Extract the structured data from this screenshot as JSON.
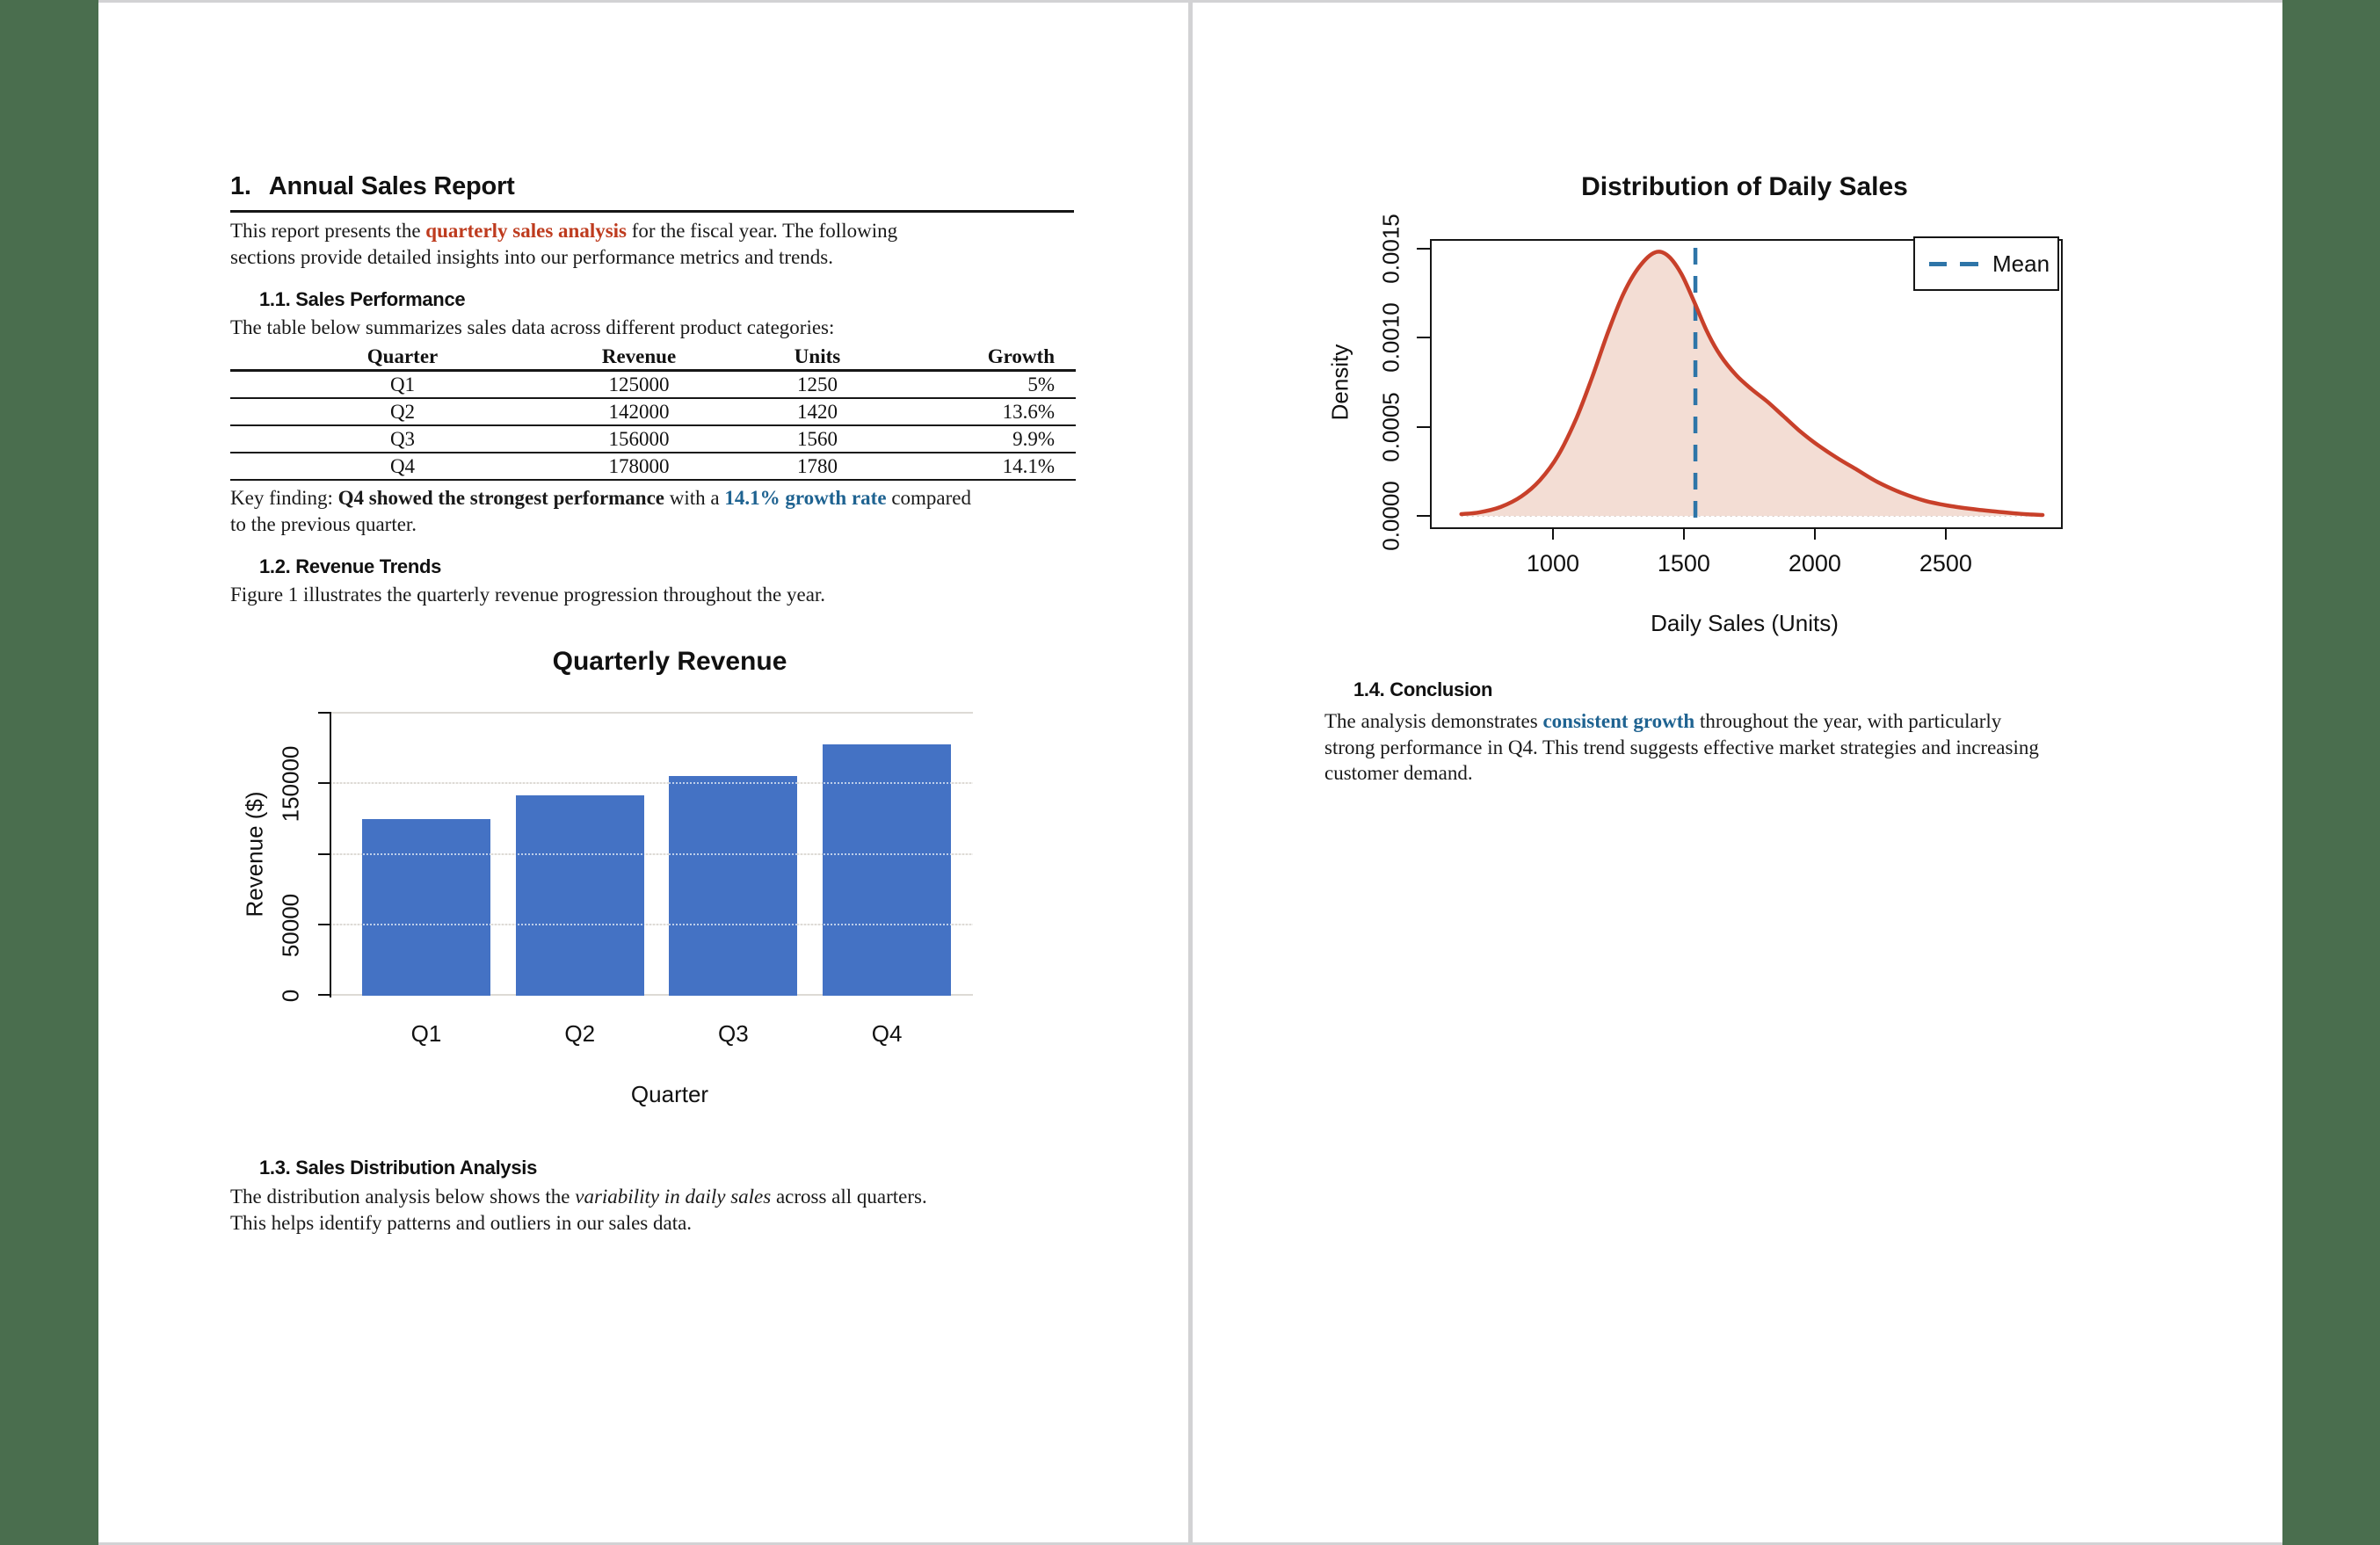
{
  "viewer": {
    "background_color": "#4a6e4e",
    "page_color": "#ffffff",
    "page_edge_color": "#d2d2d4"
  },
  "colors": {
    "accent_red": "#be3b1e",
    "accent_blue": "#1f6391",
    "bar_blue": "#4472c4",
    "curve_red": "#c8402a",
    "curve_fill": "#f3ddd4",
    "mean_blue": "#2e75a8",
    "gridline": "#dddad5"
  },
  "page1": {
    "heading_number": "1.",
    "heading_text": "Annual Sales Report",
    "intro": [
      {
        "t": "This report presents the "
      },
      {
        "t": "quarterly sales analysis",
        "s": "accent-bold"
      },
      {
        "t": " for the fiscal year. The following"
      },
      {
        "br": true
      },
      {
        "t": "sections provide detailed insights into our performance metrics and trends."
      }
    ],
    "section11": {
      "title": "1.1. Sales Performance",
      "lead": "The table below summarizes sales data across different product categories:"
    },
    "table": {
      "headers": [
        "Quarter",
        "Revenue",
        "Units",
        "Growth"
      ],
      "rows": [
        [
          "Q1",
          "125000",
          "1250",
          "5%"
        ],
        [
          "Q2",
          "142000",
          "1420",
          "13.6%"
        ],
        [
          "Q3",
          "156000",
          "1560",
          "9.9%"
        ],
        [
          "Q4",
          "178000",
          "1780",
          "14.1%"
        ]
      ]
    },
    "key_finding": [
      {
        "t": "Key finding: "
      },
      {
        "t": "Q4 showed the strongest performance",
        "s": "bold"
      },
      {
        "t": " with a "
      },
      {
        "t": "14.1% growth rate",
        "s": "blue-bold"
      },
      {
        "t": " compared"
      },
      {
        "br": true
      },
      {
        "t": "to the previous quarter."
      }
    ],
    "section12": {
      "title": "1.2. Revenue Trends",
      "lead": "Figure 1 illustrates the quarterly revenue progression throughout the year."
    },
    "chart_data": {
      "type": "bar",
      "title": "Quarterly Revenue",
      "categories": [
        "Q1",
        "Q2",
        "Q3",
        "Q4"
      ],
      "values": [
        125000,
        142000,
        156000,
        178000
      ],
      "xlabel": "Quarter",
      "ylabel": "Revenue ($)",
      "ylim": [
        0,
        200000
      ],
      "yticks": [
        0,
        50000,
        100000,
        150000,
        200000
      ],
      "ytick_labels": [
        "0",
        "50000",
        "",
        "150000",
        ""
      ],
      "grid": true,
      "legend_position": "none",
      "bar_color": "#4472c4"
    },
    "section13": {
      "title": "1.3. Sales Distribution Analysis",
      "body": [
        {
          "t": "The distribution analysis below shows the "
        },
        {
          "t": "variability in daily sales",
          "s": "italic"
        },
        {
          "t": " across all quarters."
        },
        {
          "br": true
        },
        {
          "t": "This helps identify patterns and outliers in our sales data."
        }
      ]
    }
  },
  "page2": {
    "chart_data": {
      "type": "area",
      "title": "Distribution of Daily Sales",
      "xlabel": "Daily Sales (Units)",
      "ylabel": "Density",
      "xlim": [
        537,
        2940
      ],
      "ylim": [
        0,
        0.001545
      ],
      "xticks": [
        1000,
        1500,
        2000,
        2500
      ],
      "xtick_labels": [
        "1000",
        "1500",
        "2000",
        "2500"
      ],
      "yticks": [
        0,
        0.0005,
        0.001,
        0.0015
      ],
      "ytick_labels": [
        "0.0000",
        "0.0005",
        "0.0010",
        "0.0015"
      ],
      "mean_x": 1544,
      "legend_label": "Mean",
      "legend_position": "topright",
      "line_color": "#c8402a",
      "fill_color": "#f3ddd4",
      "mean_line_color": "#2e75a8",
      "curve": [
        [
          650,
          1e-05
        ],
        [
          720,
          2e-05
        ],
        [
          800,
          5e-05
        ],
        [
          880,
          0.00011
        ],
        [
          950,
          0.0002
        ],
        [
          1020,
          0.00034
        ],
        [
          1090,
          0.00055
        ],
        [
          1150,
          0.00078
        ],
        [
          1210,
          0.00103
        ],
        [
          1270,
          0.00125
        ],
        [
          1330,
          0.0014
        ],
        [
          1390,
          0.00148
        ],
        [
          1440,
          0.00146
        ],
        [
          1490,
          0.00136
        ],
        [
          1540,
          0.0012
        ],
        [
          1590,
          0.00103
        ],
        [
          1640,
          0.0009
        ],
        [
          1700,
          0.00079
        ],
        [
          1760,
          0.00071
        ],
        [
          1820,
          0.00064
        ],
        [
          1880,
          0.00056
        ],
        [
          1940,
          0.00048
        ],
        [
          2000,
          0.00041
        ],
        [
          2080,
          0.00033
        ],
        [
          2160,
          0.00026
        ],
        [
          2240,
          0.00019
        ],
        [
          2330,
          0.00013
        ],
        [
          2420,
          8.5e-05
        ],
        [
          2520,
          5.5e-05
        ],
        [
          2620,
          3.5e-05
        ],
        [
          2720,
          2e-05
        ],
        [
          2800,
          1e-05
        ],
        [
          2870,
          5e-06
        ]
      ]
    },
    "section14": {
      "title": "1.4. Conclusion",
      "body": [
        {
          "t": "The analysis demonstrates "
        },
        {
          "t": "consistent growth",
          "s": "blue-bold"
        },
        {
          "t": " throughout the year, with particularly"
        },
        {
          "br": true
        },
        {
          "t": "strong performance in Q4. This trend suggests effective market strategies and increasing"
        },
        {
          "br": true
        },
        {
          "t": "customer demand."
        }
      ]
    }
  }
}
